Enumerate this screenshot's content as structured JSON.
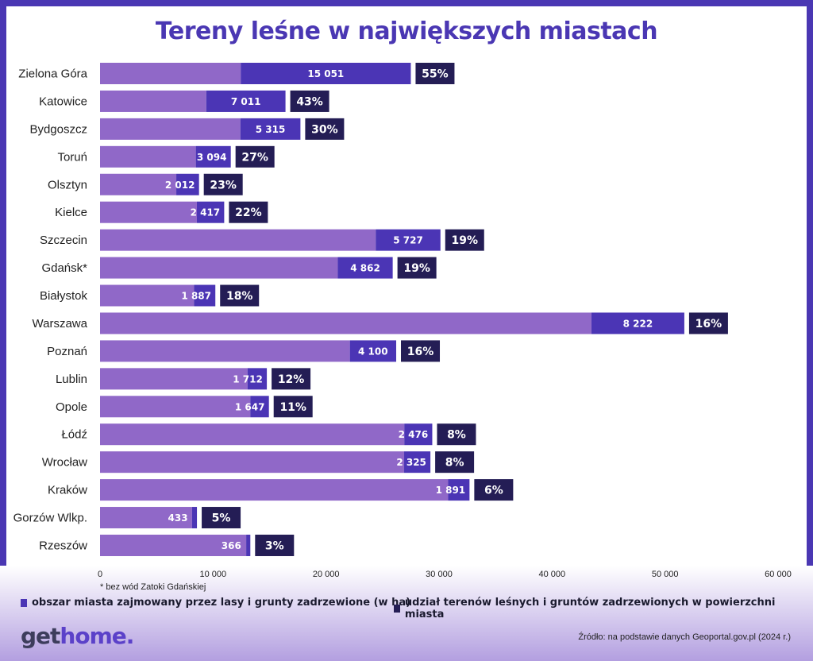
{
  "title": "Tereny leśne w największych miastach",
  "footnote": "* bez wód Zatoki Gdańskiej",
  "legend": {
    "forest_area": "obszar miasta zajmowany przez lasy i grunty zadrzewione (w ha)",
    "forest_share": "udział terenów leśnych i gruntów zadrzewionych w powierzchni miasta"
  },
  "logo": {
    "part1": "get",
    "part2": "home."
  },
  "source": "Źródło: na podstawie danych Geoportal.gov.pl (2024 r.)",
  "colors": {
    "city_area": "#9068c8",
    "forest_area": "#4b35b5",
    "share_box": "#241d55",
    "title": "#4a37b3"
  },
  "chart_data": {
    "type": "bar",
    "orientation": "horizontal",
    "stacked": true,
    "xlim": [
      0,
      60000
    ],
    "xticks": [
      0,
      10000,
      20000,
      30000,
      40000,
      50000,
      60000
    ],
    "xtick_labels": [
      "0",
      "10 000",
      "20 000",
      "30 000",
      "40 000",
      "50 000",
      "60 000"
    ],
    "grid": false,
    "categories": [
      "Zielona Góra",
      "Katowice",
      "Bydgoszcz",
      "Toruń",
      "Olsztyn",
      "Kielce",
      "Szczecin",
      "Gdańsk*",
      "Białystok",
      "Warszawa",
      "Poznań",
      "Lublin",
      "Opole",
      "Łódź",
      "Wrocław",
      "Kraków",
      "Gorzów Wlkp.",
      "Rzeszów"
    ],
    "series": [
      {
        "values": [
          12451,
          9400,
          12418,
          8476,
          6748,
          8570,
          24397,
          21037,
          8316,
          43482,
          22107,
          13048,
          13297,
          26924,
          26910,
          30804,
          8143,
          12934
        ]
      },
      {
        "name": "obszar miasta zajmowany przez lasy i grunty zadrzewione (w ha)",
        "values": [
          15051,
          7011,
          5315,
          3094,
          2012,
          2417,
          5727,
          4862,
          1887,
          8222,
          4100,
          1712,
          1647,
          2476,
          2325,
          1891,
          433,
          366
        ]
      }
    ],
    "value_labels": [
      "15 051",
      "7 011",
      "5 315",
      "3 094",
      "2 012",
      "2 417",
      "5 727",
      "4 862",
      "1 887",
      "8 222",
      "4 100",
      "1 712",
      "1 647",
      "2 476",
      "2 325",
      "1 891",
      "433",
      "366"
    ],
    "share_labels": [
      "55%",
      "43%",
      "30%",
      "27%",
      "23%",
      "22%",
      "19%",
      "19%",
      "18%",
      "16%",
      "16%",
      "12%",
      "11%",
      "8%",
      "8%",
      "6%",
      "5%",
      "3%"
    ]
  }
}
